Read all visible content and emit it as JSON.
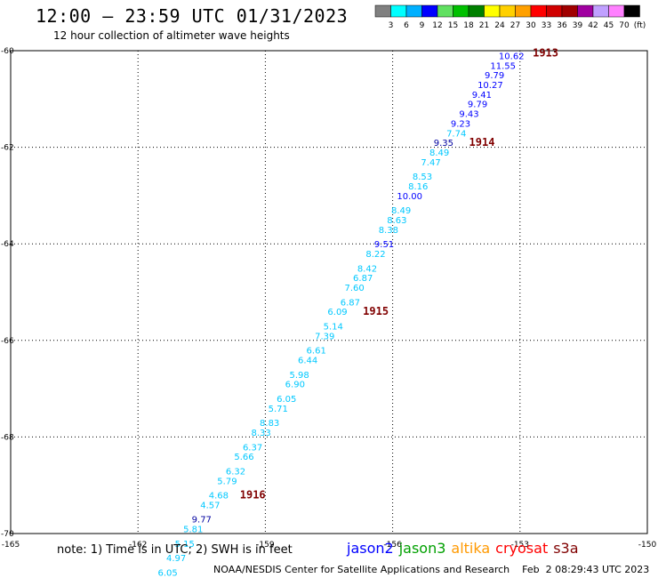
{
  "header": {
    "title": "12:00 – 23:59 UTC 01/31/2023",
    "subtitle": "12 hour collection of altimeter wave heights"
  },
  "colorbar": {
    "colors": [
      "#808080",
      "#00ffff",
      "#00b0ff",
      "#0000ff",
      "#60e060",
      "#00c000",
      "#008000",
      "#ffff00",
      "#ffd000",
      "#ffa000",
      "#ff0000",
      "#d00000",
      "#a00000",
      "#a000a0",
      "#c0a0ff",
      "#ff80ff",
      "#000000"
    ],
    "labels": [
      "3",
      "6",
      "9",
      "12",
      "15",
      "18",
      "21",
      "24",
      "27",
      "30",
      "33",
      "36",
      "39",
      "42",
      "45",
      "70",
      "(ft)"
    ]
  },
  "footer": {
    "note": "note: 1) Time is in UTC; 2) SWH is in feet",
    "credit": "NOAA/NESDIS Center for Satellite Applications and Research    Feb  2 08:29:43 UTC 2023",
    "satellites": [
      {
        "name": "jason2",
        "color": "#0000ff"
      },
      {
        "name": "jason3",
        "color": "#00a000"
      },
      {
        "name": "altika",
        "color": "#ff9900"
      },
      {
        "name": "cryosat",
        "color": "#ff0000"
      },
      {
        "name": "s3a",
        "color": "#800000"
      }
    ]
  },
  "chart_data": {
    "type": "scatter",
    "xlim": [
      -165,
      -150
    ],
    "ylim": [
      -70,
      -60
    ],
    "x_ticks": [
      "-165",
      "-162",
      "-159",
      "-156",
      "-153",
      "-150"
    ],
    "y_ticks": [
      "-60",
      "-62",
      "-64",
      "-66",
      "-68",
      "-70"
    ],
    "grid": true,
    "points": [
      {
        "lon": -153.2,
        "lat": -60.1,
        "value": "10.62",
        "color": "#0000ff"
      },
      {
        "lon": -153.4,
        "lat": -60.3,
        "value": "11.55",
        "color": "#0000ff"
      },
      {
        "lon": -153.6,
        "lat": -60.5,
        "value": "9.79",
        "color": "#0000ff"
      },
      {
        "lon": -153.7,
        "lat": -60.7,
        "value": "10.27",
        "color": "#0000ff"
      },
      {
        "lon": -153.9,
        "lat": -60.9,
        "value": "9.41",
        "color": "#0000ff"
      },
      {
        "lon": -154.0,
        "lat": -61.1,
        "value": "9.79",
        "color": "#0000ff"
      },
      {
        "lon": -154.2,
        "lat": -61.3,
        "value": "9.43",
        "color": "#0000ff"
      },
      {
        "lon": -154.4,
        "lat": -61.5,
        "value": "9.23",
        "color": "#0000ff"
      },
      {
        "lon": -154.5,
        "lat": -61.7,
        "value": "7.74",
        "color": "#00c8ff"
      },
      {
        "lon": -154.8,
        "lat": -61.9,
        "value": "9.35",
        "color": "#0000a0"
      },
      {
        "lon": -154.9,
        "lat": -62.1,
        "value": "8.49",
        "color": "#00c8ff"
      },
      {
        "lon": -155.1,
        "lat": -62.3,
        "value": "7.47",
        "color": "#00c8ff"
      },
      {
        "lon": -155.3,
        "lat": -62.6,
        "value": "8.53",
        "color": "#00c8ff"
      },
      {
        "lon": -155.4,
        "lat": -62.8,
        "value": "8.16",
        "color": "#00c8ff"
      },
      {
        "lon": -155.6,
        "lat": -63.0,
        "value": "10.00",
        "color": "#0000ff"
      },
      {
        "lon": -155.8,
        "lat": -63.3,
        "value": "8.49",
        "color": "#00c8ff"
      },
      {
        "lon": -155.9,
        "lat": -63.5,
        "value": "8.63",
        "color": "#00c8ff"
      },
      {
        "lon": -156.1,
        "lat": -63.7,
        "value": "8.38",
        "color": "#00c8ff"
      },
      {
        "lon": -156.2,
        "lat": -64.0,
        "value": "9.51",
        "color": "#0000ff"
      },
      {
        "lon": -156.4,
        "lat": -64.2,
        "value": "8.22",
        "color": "#00c8ff"
      },
      {
        "lon": -156.6,
        "lat": -64.5,
        "value": "8.42",
        "color": "#00c8ff"
      },
      {
        "lon": -156.7,
        "lat": -64.7,
        "value": "6.87",
        "color": "#00c8ff"
      },
      {
        "lon": -156.9,
        "lat": -64.9,
        "value": "7.60",
        "color": "#00c8ff"
      },
      {
        "lon": -157.0,
        "lat": -65.2,
        "value": "6.87",
        "color": "#00c8ff"
      },
      {
        "lon": -157.3,
        "lat": -65.4,
        "value": "6.09",
        "color": "#00c8ff"
      },
      {
        "lon": -157.4,
        "lat": -65.7,
        "value": "5.14",
        "color": "#00c8ff"
      },
      {
        "lon": -157.6,
        "lat": -65.9,
        "value": "7.39",
        "color": "#00c8ff"
      },
      {
        "lon": -157.8,
        "lat": -66.2,
        "value": "6.61",
        "color": "#00c8ff"
      },
      {
        "lon": -158.0,
        "lat": -66.4,
        "value": "6.44",
        "color": "#00c8ff"
      },
      {
        "lon": -158.2,
        "lat": -66.7,
        "value": "5.98",
        "color": "#00c8ff"
      },
      {
        "lon": -158.3,
        "lat": -66.9,
        "value": "6.90",
        "color": "#00c8ff"
      },
      {
        "lon": -158.5,
        "lat": -67.2,
        "value": "6.05",
        "color": "#00c8ff"
      },
      {
        "lon": -158.7,
        "lat": -67.4,
        "value": "5.71",
        "color": "#00c8ff"
      },
      {
        "lon": -158.9,
        "lat": -67.7,
        "value": "8.83",
        "color": "#00c8ff"
      },
      {
        "lon": -159.1,
        "lat": -67.9,
        "value": "8.33",
        "color": "#00c8ff"
      },
      {
        "lon": -159.3,
        "lat": -68.2,
        "value": "6.37",
        "color": "#00c8ff"
      },
      {
        "lon": -159.5,
        "lat": -68.4,
        "value": "5.66",
        "color": "#00c8ff"
      },
      {
        "lon": -159.7,
        "lat": -68.7,
        "value": "6.32",
        "color": "#00c8ff"
      },
      {
        "lon": -159.9,
        "lat": -68.9,
        "value": "5.79",
        "color": "#00c8ff"
      },
      {
        "lon": -160.1,
        "lat": -69.2,
        "value": "4.68",
        "color": "#00c8ff"
      },
      {
        "lon": -160.3,
        "lat": -69.4,
        "value": "4.57",
        "color": "#00c8ff"
      },
      {
        "lon": -160.5,
        "lat": -69.7,
        "value": "9.77",
        "color": "#0000a0"
      },
      {
        "lon": -160.7,
        "lat": -69.9,
        "value": "5.81",
        "color": "#00c8ff"
      },
      {
        "lon": -160.9,
        "lat": -70.2,
        "value": "5.15",
        "color": "#00c8ff"
      },
      {
        "lon": -161.1,
        "lat": -70.5,
        "value": "4.97",
        "color": "#00c8ff"
      },
      {
        "lon": -161.3,
        "lat": -70.8,
        "value": "6.05",
        "color": "#00c8ff"
      }
    ],
    "track_labels": [
      {
        "text": "1913",
        "lon": -152.7,
        "lat": -60.05
      },
      {
        "text": "1914",
        "lon": -154.2,
        "lat": -61.9
      },
      {
        "text": "1915",
        "lon": -156.7,
        "lat": -65.4
      },
      {
        "text": "1916",
        "lon": -159.6,
        "lat": -69.2
      }
    ]
  }
}
